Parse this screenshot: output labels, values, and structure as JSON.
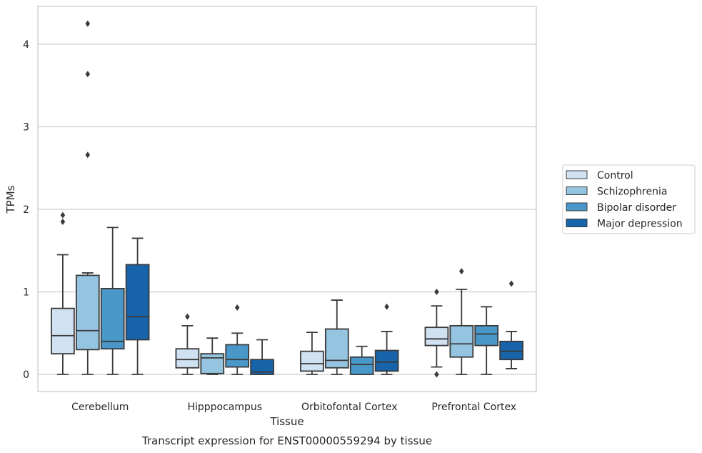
{
  "chart_data": {
    "type": "box",
    "title": "Transcript expression for ENST00000559294 by tissue",
    "xlabel": "Tissue",
    "ylabel": "TPMs",
    "ylim": [
      -0.2,
      4.45
    ],
    "yticks": [
      0,
      1,
      2,
      3,
      4
    ],
    "grid": true,
    "legend_position": "right",
    "categories": [
      "Cerebellum",
      "Hipppocampus",
      "Orbitofontal Cortex",
      "Prefrontal Cortex"
    ],
    "series": [
      {
        "name": "Control",
        "color": "#d0e1f2",
        "boxes": [
          {
            "whisker_low": 0.0,
            "q1": 0.25,
            "median": 0.47,
            "q3": 0.8,
            "whisker_high": 1.45,
            "outliers": [
              1.85,
              1.93
            ]
          },
          {
            "whisker_low": 0.0,
            "q1": 0.08,
            "median": 0.18,
            "q3": 0.31,
            "whisker_high": 0.59,
            "outliers": [
              0.7
            ]
          },
          {
            "whisker_low": 0.0,
            "q1": 0.04,
            "median": 0.13,
            "q3": 0.28,
            "whisker_high": 0.51,
            "outliers": []
          },
          {
            "whisker_low": 0.09,
            "q1": 0.35,
            "median": 0.43,
            "q3": 0.57,
            "whisker_high": 0.83,
            "outliers": [
              0.0,
              1.0
            ]
          }
        ]
      },
      {
        "name": "Schizophrenia",
        "color": "#94c4df",
        "boxes": [
          {
            "whisker_low": 0.0,
            "q1": 0.3,
            "median": 0.53,
            "q3": 1.2,
            "whisker_high": 1.23,
            "outliers": [
              2.66,
              3.64,
              4.25
            ]
          },
          {
            "whisker_low": 0.0,
            "q1": 0.01,
            "median": 0.2,
            "q3": 0.25,
            "whisker_high": 0.44,
            "outliers": []
          },
          {
            "whisker_low": 0.0,
            "q1": 0.08,
            "median": 0.17,
            "q3": 0.55,
            "whisker_high": 0.9,
            "outliers": []
          },
          {
            "whisker_low": 0.0,
            "q1": 0.21,
            "median": 0.37,
            "q3": 0.59,
            "whisker_high": 1.03,
            "outliers": [
              1.25
            ]
          }
        ]
      },
      {
        "name": "Bipolar disorder",
        "color": "#4a98c9",
        "boxes": [
          {
            "whisker_low": 0.0,
            "q1": 0.31,
            "median": 0.4,
            "q3": 1.04,
            "whisker_high": 1.78,
            "outliers": []
          },
          {
            "whisker_low": 0.0,
            "q1": 0.09,
            "median": 0.18,
            "q3": 0.36,
            "whisker_high": 0.5,
            "outliers": [
              0.81
            ]
          },
          {
            "whisker_low": 0.0,
            "q1": 0.0,
            "median": 0.12,
            "q3": 0.21,
            "whisker_high": 0.34,
            "outliers": []
          },
          {
            "whisker_low": 0.0,
            "q1": 0.35,
            "median": 0.49,
            "q3": 0.59,
            "whisker_high": 0.82,
            "outliers": []
          }
        ]
      },
      {
        "name": "Major depression",
        "color": "#1764ab",
        "boxes": [
          {
            "whisker_low": 0.0,
            "q1": 0.42,
            "median": 0.7,
            "q3": 1.33,
            "whisker_high": 1.65,
            "outliers": []
          },
          {
            "whisker_low": 0.0,
            "q1": 0.0,
            "median": 0.03,
            "q3": 0.18,
            "whisker_high": 0.42,
            "outliers": []
          },
          {
            "whisker_low": 0.0,
            "q1": 0.04,
            "median": 0.15,
            "q3": 0.29,
            "whisker_high": 0.52,
            "outliers": [
              0.82
            ]
          },
          {
            "whisker_low": 0.07,
            "q1": 0.18,
            "median": 0.28,
            "q3": 0.4,
            "whisker_high": 0.52,
            "outliers": [
              1.1
            ]
          }
        ]
      }
    ]
  }
}
